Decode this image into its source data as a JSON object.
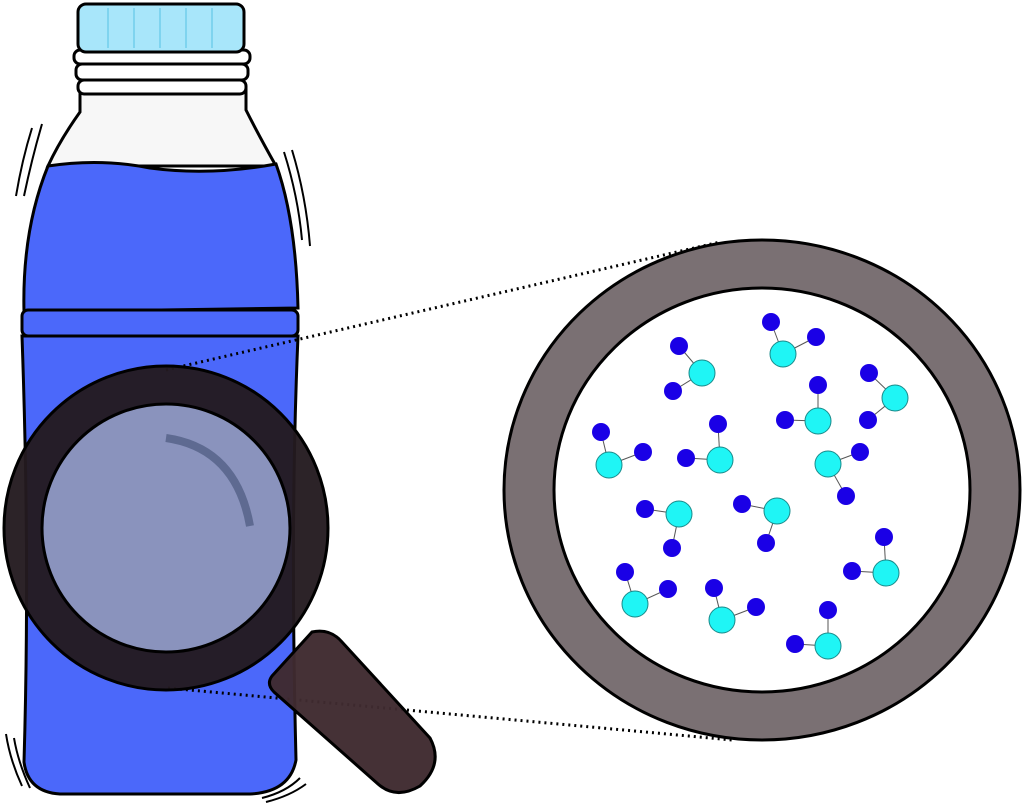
{
  "colors": {
    "outline": "#000000",
    "cap": "#a8e6fa",
    "cap_ridges": "#7fd4ef",
    "bottle_neck": "#f7f7f7",
    "liquid": "#4b68fa",
    "lens_frame": "#231a1f",
    "lens_glass": "#8a93bd",
    "lens_glint": "#5e6a91",
    "handle": "#3f2a2f",
    "magnified_ring": "#7a7073",
    "magnified_bg": "#ffffff",
    "atom_large": "#1ff5f5",
    "atom_small": "#1a00e6",
    "dotted_line": "#000000"
  },
  "molecules": [
    {
      "label": "molecule"
    },
    {
      "label": "molecule"
    },
    {
      "label": "molecule"
    },
    {
      "label": "molecule"
    },
    {
      "label": "molecule"
    },
    {
      "label": "molecule"
    },
    {
      "label": "molecule"
    },
    {
      "label": "molecule"
    },
    {
      "label": "molecule"
    },
    {
      "label": "molecule"
    },
    {
      "label": "molecule"
    },
    {
      "label": "molecule"
    },
    {
      "label": "molecule"
    },
    {
      "label": "molecule"
    },
    {
      "label": "molecule"
    }
  ]
}
